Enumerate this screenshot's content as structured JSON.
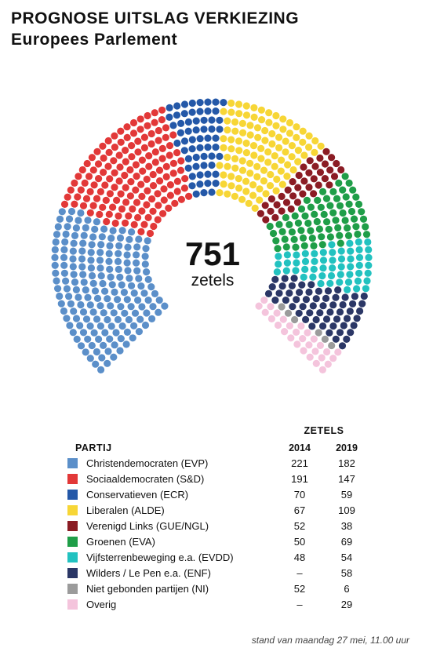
{
  "title_line1": "PROGNOSE UITSLAG VERKIEZING",
  "title_line2": "Europees Parlement",
  "total": {
    "number": "751",
    "label": "zetels"
  },
  "legend": {
    "zetels_header": "ZETELS",
    "party_header": "PARTIJ",
    "col_2014": "2014",
    "col_2019": "2019"
  },
  "footer": "stand van maandag 27 mei, 11.00 uur",
  "chart_data": {
    "type": "hemicycle",
    "total_seats": 751,
    "center_label": "751 zetels",
    "series": [
      {
        "name": "Christendemocraten (EVP)",
        "color": "#5b8fc9",
        "seats_2014": 221,
        "seats_2019": 182,
        "label_2014": "221",
        "label_2019": "182"
      },
      {
        "name": "Sociaaldemocraten (S&D)",
        "color": "#e23838",
        "seats_2014": 191,
        "seats_2019": 147,
        "label_2014": "191",
        "label_2019": "147"
      },
      {
        "name": "Conservatieven (ECR)",
        "color": "#2458a8",
        "seats_2014": 70,
        "seats_2019": 59,
        "label_2014": "70",
        "label_2019": "59"
      },
      {
        "name": "Liberalen (ALDE)",
        "color": "#f7d636",
        "seats_2014": 67,
        "seats_2019": 109,
        "label_2014": "67",
        "label_2019": "109"
      },
      {
        "name": "Verenigd Links (GUE/NGL)",
        "color": "#8b1c24",
        "seats_2014": 52,
        "seats_2019": 38,
        "label_2014": "52",
        "label_2019": "38"
      },
      {
        "name": "Groenen (EVA)",
        "color": "#1f9e48",
        "seats_2014": 50,
        "seats_2019": 69,
        "label_2014": "50",
        "label_2019": "69"
      },
      {
        "name": "Vijfsterrenbeweging e.a. (EVDD)",
        "color": "#22c2c0",
        "seats_2014": 48,
        "seats_2019": 54,
        "label_2014": "48",
        "label_2019": "54"
      },
      {
        "name": "Wilders / Le Pen e.a. (ENF)",
        "color": "#2b3766",
        "seats_2014": null,
        "seats_2019": 58,
        "label_2014": "–",
        "label_2019": "58"
      },
      {
        "name": "Niet gebonden partijen (NI)",
        "color": "#9b9b9b",
        "seats_2014": 52,
        "seats_2019": 6,
        "label_2014": "52",
        "label_2019": "6"
      },
      {
        "name": "Overig",
        "color": "#f4c4dc",
        "seats_2014": null,
        "seats_2019": 29,
        "label_2014": "–",
        "label_2019": "29"
      }
    ]
  }
}
